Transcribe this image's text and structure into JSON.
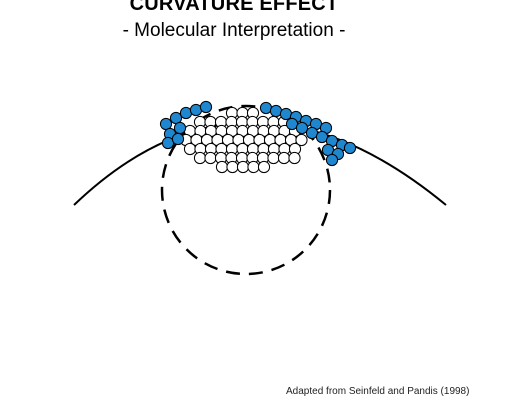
{
  "title": "CURVATURE EFFECT",
  "subtitle": "-  Molecular Interpretation  -",
  "credit": "Adapted from Seinfeld and Pandis (1998)",
  "colors": {
    "surface_molecule": "#1f87d0",
    "interior_molecule": "#ffffff",
    "stroke": "#000000",
    "background": "#ffffff"
  },
  "icons": [
    "curved-surface-arc",
    "droplet-outline",
    "molecule-circle"
  ]
}
